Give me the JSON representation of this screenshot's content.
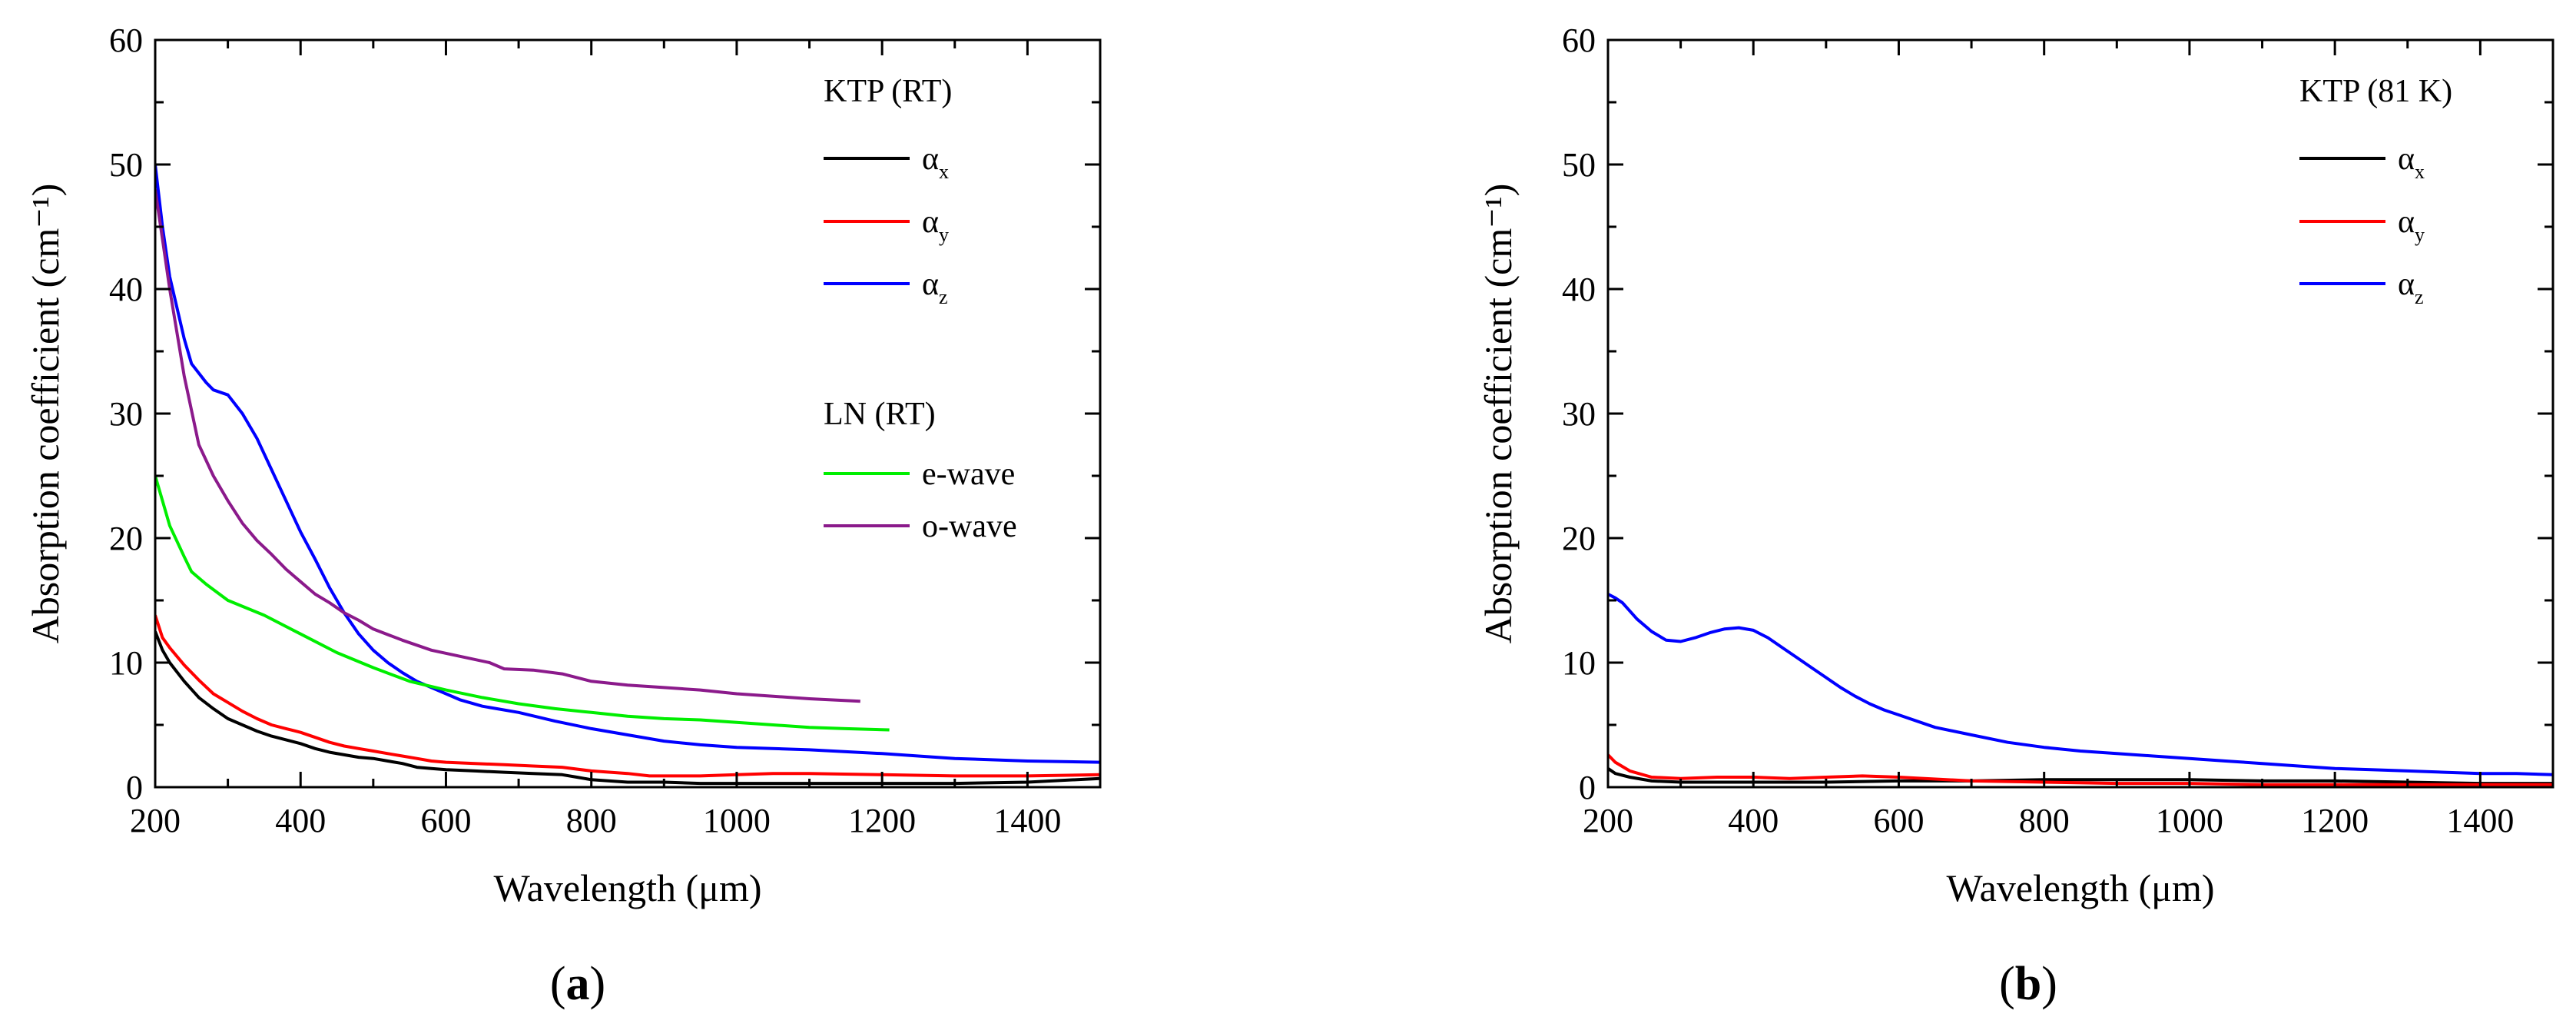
{
  "figure": {
    "panels": [
      "(a)",
      "(b)"
    ],
    "panel_letters": [
      "a",
      "b"
    ]
  },
  "chart_data": [
    {
      "type": "line",
      "panel": "a",
      "xlabel": "Wavelength (μm)",
      "ylabel": "Absorption coefficient (cm⁻¹)",
      "xlim": [
        200,
        1500
      ],
      "ylim": [
        0,
        60
      ],
      "xticks": [
        200,
        400,
        600,
        800,
        1000,
        1200,
        1400
      ],
      "yticks": [
        0,
        10,
        20,
        30,
        40,
        50,
        60
      ],
      "legend_groups": [
        {
          "title": "KTP (RT)",
          "entries": [
            0,
            1,
            2
          ]
        },
        {
          "title": "LN (RT)",
          "entries": [
            3,
            4
          ]
        }
      ],
      "series": [
        {
          "name": "α",
          "sub": "x",
          "color": "#000000",
          "points": [
            [
              200,
              12.5
            ],
            [
              210,
              11
            ],
            [
              220,
              10
            ],
            [
              240,
              8.5
            ],
            [
              260,
              7.2
            ],
            [
              280,
              6.3
            ],
            [
              300,
              5.5
            ],
            [
              320,
              5
            ],
            [
              340,
              4.5
            ],
            [
              360,
              4.1
            ],
            [
              380,
              3.8
            ],
            [
              400,
              3.5
            ],
            [
              420,
              3.1
            ],
            [
              440,
              2.8
            ],
            [
              460,
              2.6
            ],
            [
              480,
              2.4
            ],
            [
              500,
              2.3
            ],
            [
              520,
              2.1
            ],
            [
              540,
              1.9
            ],
            [
              560,
              1.6
            ],
            [
              580,
              1.5
            ],
            [
              600,
              1.4
            ],
            [
              640,
              1.3
            ],
            [
              680,
              1.2
            ],
            [
              720,
              1.1
            ],
            [
              760,
              1.0
            ],
            [
              780,
              0.8
            ],
            [
              800,
              0.6
            ],
            [
              850,
              0.4
            ],
            [
              900,
              0.4
            ],
            [
              950,
              0.3
            ],
            [
              1000,
              0.3
            ],
            [
              1100,
              0.3
            ],
            [
              1200,
              0.3
            ],
            [
              1300,
              0.3
            ],
            [
              1400,
              0.4
            ],
            [
              1500,
              0.7
            ]
          ]
        },
        {
          "name": "α",
          "sub": "y",
          "color": "#ff0000",
          "points": [
            [
              200,
              13.8
            ],
            [
              210,
              12
            ],
            [
              220,
              11.2
            ],
            [
              240,
              9.8
            ],
            [
              260,
              8.6
            ],
            [
              280,
              7.5
            ],
            [
              300,
              6.8
            ],
            [
              320,
              6.1
            ],
            [
              340,
              5.5
            ],
            [
              360,
              5
            ],
            [
              380,
              4.7
            ],
            [
              400,
              4.4
            ],
            [
              420,
              4
            ],
            [
              440,
              3.6
            ],
            [
              460,
              3.3
            ],
            [
              480,
              3.1
            ],
            [
              500,
              2.9
            ],
            [
              520,
              2.7
            ],
            [
              540,
              2.5
            ],
            [
              560,
              2.3
            ],
            [
              580,
              2.1
            ],
            [
              600,
              2.0
            ],
            [
              640,
              1.9
            ],
            [
              680,
              1.8
            ],
            [
              720,
              1.7
            ],
            [
              760,
              1.6
            ],
            [
              800,
              1.3
            ],
            [
              850,
              1.1
            ],
            [
              880,
              0.9
            ],
            [
              950,
              0.9
            ],
            [
              1000,
              1.0
            ],
            [
              1050,
              1.1
            ],
            [
              1100,
              1.1
            ],
            [
              1200,
              1.0
            ],
            [
              1300,
              0.9
            ],
            [
              1400,
              0.9
            ],
            [
              1500,
              1.0
            ]
          ]
        },
        {
          "name": "α",
          "sub": "z",
          "color": "#0000ff",
          "points": [
            [
              200,
              50
            ],
            [
              210,
              45
            ],
            [
              220,
              41
            ],
            [
              240,
              36
            ],
            [
              250,
              34
            ],
            [
              270,
              32.5
            ],
            [
              280,
              31.9
            ],
            [
              300,
              31.5
            ],
            [
              320,
              30
            ],
            [
              340,
              28
            ],
            [
              360,
              25.5
            ],
            [
              380,
              23
            ],
            [
              400,
              20.5
            ],
            [
              420,
              18.3
            ],
            [
              440,
              16
            ],
            [
              460,
              14
            ],
            [
              480,
              12.3
            ],
            [
              500,
              11
            ],
            [
              520,
              10
            ],
            [
              540,
              9.2
            ],
            [
              560,
              8.5
            ],
            [
              580,
              8
            ],
            [
              600,
              7.5
            ],
            [
              620,
              7
            ],
            [
              650,
              6.5
            ],
            [
              700,
              6
            ],
            [
              750,
              5.3
            ],
            [
              800,
              4.7
            ],
            [
              850,
              4.2
            ],
            [
              900,
              3.7
            ],
            [
              950,
              3.4
            ],
            [
              1000,
              3.2
            ],
            [
              1100,
              3.0
            ],
            [
              1200,
              2.7
            ],
            [
              1300,
              2.3
            ],
            [
              1400,
              2.1
            ],
            [
              1500,
              2.0
            ]
          ]
        },
        {
          "name": "e-wave",
          "color": "#00ee00",
          "points": [
            [
              200,
              25
            ],
            [
              210,
              23
            ],
            [
              220,
              21
            ],
            [
              240,
              18.5
            ],
            [
              250,
              17.3
            ],
            [
              270,
              16.3
            ],
            [
              300,
              15
            ],
            [
              350,
              13.8
            ],
            [
              400,
              12.3
            ],
            [
              450,
              10.8
            ],
            [
              500,
              9.6
            ],
            [
              550,
              8.5
            ],
            [
              600,
              7.8
            ],
            [
              650,
              7.2
            ],
            [
              700,
              6.7
            ],
            [
              750,
              6.3
            ],
            [
              800,
              6.0
            ],
            [
              850,
              5.7
            ],
            [
              900,
              5.5
            ],
            [
              950,
              5.4
            ],
            [
              1000,
              5.2
            ],
            [
              1050,
              5.0
            ],
            [
              1100,
              4.8
            ],
            [
              1150,
              4.7
            ],
            [
              1210,
              4.6
            ]
          ]
        },
        {
          "name": "o-wave",
          "color": "#8b1a8b",
          "points": [
            [
              200,
              48
            ],
            [
              210,
              44
            ],
            [
              220,
              40
            ],
            [
              240,
              33
            ],
            [
              260,
              27.5
            ],
            [
              280,
              25
            ],
            [
              300,
              23
            ],
            [
              320,
              21.2
            ],
            [
              340,
              19.8
            ],
            [
              360,
              18.7
            ],
            [
              380,
              17.5
            ],
            [
              400,
              16.5
            ],
            [
              420,
              15.5
            ],
            [
              440,
              14.8
            ],
            [
              460,
              14
            ],
            [
              480,
              13.4
            ],
            [
              500,
              12.7
            ],
            [
              540,
              11.8
            ],
            [
              580,
              11.0
            ],
            [
              620,
              10.5
            ],
            [
              660,
              10
            ],
            [
              680,
              9.5
            ],
            [
              720,
              9.4
            ],
            [
              760,
              9.1
            ],
            [
              800,
              8.5
            ],
            [
              850,
              8.2
            ],
            [
              900,
              8.0
            ],
            [
              950,
              7.8
            ],
            [
              1000,
              7.5
            ],
            [
              1050,
              7.3
            ],
            [
              1100,
              7.1
            ],
            [
              1170,
              6.9
            ]
          ]
        }
      ]
    },
    {
      "type": "line",
      "panel": "b",
      "xlabel": "Wavelength (μm)",
      "ylabel": "Absorption coefficient (cm⁻¹)",
      "xlim": [
        200,
        1500
      ],
      "ylim": [
        0,
        60
      ],
      "xticks": [
        200,
        400,
        600,
        800,
        1000,
        1200,
        1400
      ],
      "yticks": [
        0,
        10,
        20,
        30,
        40,
        50,
        60
      ],
      "legend_groups": [
        {
          "title": "KTP (81 K)",
          "entries": [
            0,
            1,
            2
          ]
        }
      ],
      "series": [
        {
          "name": "α",
          "sub": "x",
          "color": "#000000",
          "points": [
            [
              200,
              1.5
            ],
            [
              210,
              1.1
            ],
            [
              230,
              0.8
            ],
            [
              260,
              0.5
            ],
            [
              300,
              0.4
            ],
            [
              400,
              0.4
            ],
            [
              500,
              0.4
            ],
            [
              600,
              0.5
            ],
            [
              700,
              0.5
            ],
            [
              800,
              0.6
            ],
            [
              900,
              0.6
            ],
            [
              1000,
              0.6
            ],
            [
              1100,
              0.5
            ],
            [
              1200,
              0.5
            ],
            [
              1300,
              0.4
            ],
            [
              1400,
              0.3
            ],
            [
              1500,
              0.3
            ]
          ]
        },
        {
          "name": "α",
          "sub": "y",
          "color": "#ff0000",
          "points": [
            [
              200,
              2.6
            ],
            [
              210,
              2.0
            ],
            [
              230,
              1.3
            ],
            [
              260,
              0.8
            ],
            [
              300,
              0.7
            ],
            [
              350,
              0.8
            ],
            [
              400,
              0.8
            ],
            [
              450,
              0.7
            ],
            [
              500,
              0.8
            ],
            [
              550,
              0.9
            ],
            [
              600,
              0.8
            ],
            [
              700,
              0.5
            ],
            [
              800,
              0.4
            ],
            [
              900,
              0.3
            ],
            [
              1000,
              0.3
            ],
            [
              1100,
              0.2
            ],
            [
              1200,
              0.2
            ],
            [
              1300,
              0.2
            ],
            [
              1400,
              0.2
            ],
            [
              1500,
              0.2
            ]
          ]
        },
        {
          "name": "α",
          "sub": "z",
          "color": "#0000ff",
          "points": [
            [
              200,
              15.5
            ],
            [
              210,
              15.2
            ],
            [
              220,
              14.8
            ],
            [
              240,
              13.5
            ],
            [
              260,
              12.5
            ],
            [
              280,
              11.8
            ],
            [
              300,
              11.7
            ],
            [
              320,
              12
            ],
            [
              340,
              12.4
            ],
            [
              360,
              12.7
            ],
            [
              380,
              12.8
            ],
            [
              400,
              12.6
            ],
            [
              420,
              12
            ],
            [
              440,
              11.2
            ],
            [
              460,
              10.4
            ],
            [
              480,
              9.6
            ],
            [
              500,
              8.8
            ],
            [
              520,
              8
            ],
            [
              540,
              7.3
            ],
            [
              560,
              6.7
            ],
            [
              580,
              6.2
            ],
            [
              600,
              5.8
            ],
            [
              650,
              4.8
            ],
            [
              700,
              4.2
            ],
            [
              750,
              3.6
            ],
            [
              800,
              3.2
            ],
            [
              850,
              2.9
            ],
            [
              900,
              2.7
            ],
            [
              950,
              2.5
            ],
            [
              1000,
              2.3
            ],
            [
              1050,
              2.1
            ],
            [
              1100,
              1.9
            ],
            [
              1150,
              1.7
            ],
            [
              1200,
              1.5
            ],
            [
              1250,
              1.4
            ],
            [
              1300,
              1.3
            ],
            [
              1350,
              1.2
            ],
            [
              1400,
              1.1
            ],
            [
              1450,
              1.1
            ],
            [
              1500,
              1.0
            ]
          ]
        }
      ]
    }
  ]
}
